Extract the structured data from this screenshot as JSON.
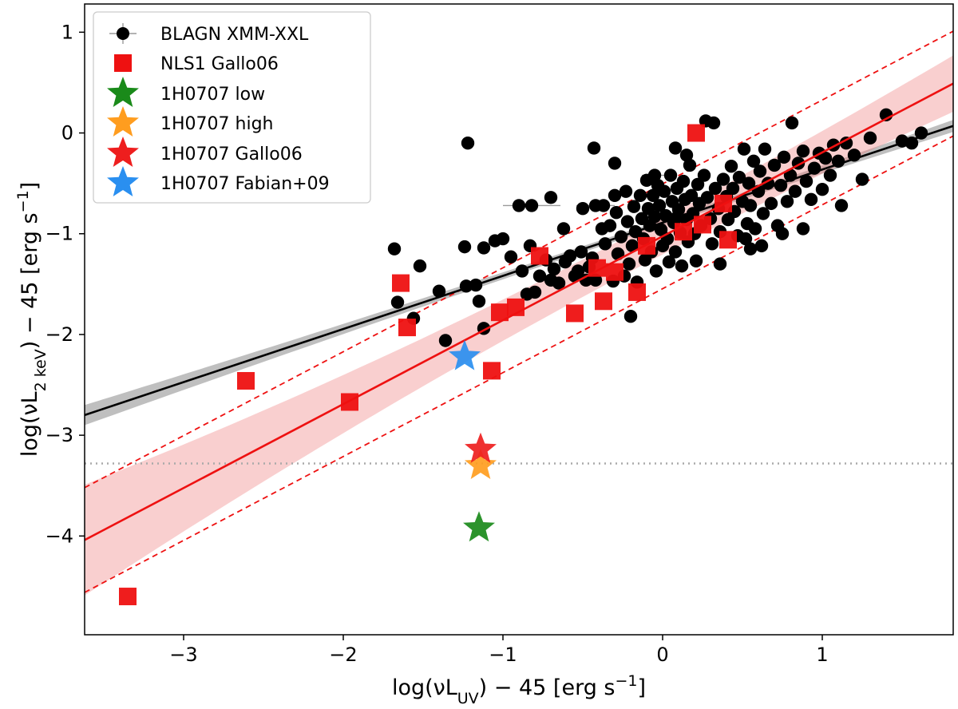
{
  "chart_data": {
    "type": "scatter",
    "xlim": [
      -3.62,
      1.82
    ],
    "ylim": [
      -4.98,
      1.28
    ],
    "x_ticks": [
      -3,
      -2,
      -1,
      0,
      1
    ],
    "y_ticks": [
      -4,
      -3,
      -2,
      -1,
      0,
      1
    ],
    "x_tick_labels": [
      "−3",
      "−2",
      "−1",
      "0",
      "1"
    ],
    "y_tick_labels": [
      "−4",
      "−3",
      "−2",
      "−1",
      "0",
      "1"
    ],
    "xlabel": {
      "prefix": "log(νL",
      "subscript": "UV",
      "suffix": ") − 45 [erg s",
      "superscript": "−1",
      "close": "]"
    },
    "ylabel": {
      "prefix": "log(νL",
      "subscript": "2 keV",
      "suffix": ") − 45 [erg s",
      "superscript": "−1",
      "close": "]"
    },
    "legend_position": "upper-left",
    "legend": [
      {
        "label": "BLAGN XMM-XXL",
        "marker": "circle-errorbar",
        "color": "#000000"
      },
      {
        "label": "NLS1 Gallo06",
        "marker": "square",
        "color": "#ee1111"
      },
      {
        "label": "1H0707 low",
        "marker": "star",
        "color": "#1a8a1a"
      },
      {
        "label": "1H0707 high",
        "marker": "star",
        "color": "#ff9d1f"
      },
      {
        "label": "1H0707 Gallo06",
        "marker": "star",
        "color": "#ee1e1e"
      },
      {
        "label": "1H0707 Fabian+09",
        "marker": "star",
        "color": "#2a8ff0"
      }
    ],
    "reference_line": {
      "name": "flux-limit",
      "y": -3.28,
      "style": "dotted",
      "color": "#aaaaaa"
    },
    "fits": [
      {
        "name": "BLAGN fit",
        "color": "#000000",
        "x": [
          -3.62,
          1.82
        ],
        "y": [
          -2.8,
          0.07
        ],
        "band_halfwidth": [
          0.1,
          0.03,
          0.06
        ]
      },
      {
        "name": "NLS1 fit",
        "color": "#ee1111",
        "x": [
          -3.62,
          1.82
        ],
        "y": [
          -4.04,
          0.49
        ],
        "band_halfwidth": [
          0.55,
          0.18,
          0.28
        ]
      }
    ],
    "nls1_scatter_lines": [
      {
        "name": "NLS1 upper envelope",
        "color": "#ee1111",
        "style": "dashed",
        "x": [
          -3.62,
          1.82
        ],
        "y": [
          -3.52,
          1.01
        ]
      },
      {
        "name": "NLS1 lower envelope",
        "color": "#ee1111",
        "style": "dashed",
        "x": [
          -3.62,
          1.82
        ],
        "y": [
          -4.56,
          -0.03
        ]
      }
    ],
    "stars": [
      {
        "label": "1H0707 low",
        "x": -1.15,
        "y": -3.92,
        "color": "#1a8a1a"
      },
      {
        "label": "1H0707 high",
        "x": -1.14,
        "y": -3.3,
        "color": "#ff9d1f"
      },
      {
        "label": "1H0707 Gallo06",
        "x": -1.14,
        "y": -3.14,
        "color": "#ee1e1e"
      },
      {
        "label": "1H0707 Fabian+09",
        "x": -1.24,
        "y": -2.22,
        "color": "#2a8ff0"
      }
    ],
    "nls1_points": [
      [
        -3.35,
        -4.6
      ],
      [
        -2.61,
        -2.46
      ],
      [
        -1.96,
        -2.67
      ],
      [
        -1.64,
        -1.49
      ],
      [
        -1.6,
        -1.93
      ],
      [
        -1.07,
        -2.36
      ],
      [
        -1.02,
        -1.78
      ],
      [
        -0.92,
        -1.73
      ],
      [
        -0.77,
        -1.22
      ],
      [
        -0.55,
        -1.79
      ],
      [
        -0.41,
        -1.34
      ],
      [
        -0.37,
        -1.67
      ],
      [
        -0.3,
        -1.38
      ],
      [
        -0.16,
        -1.58
      ],
      [
        -0.1,
        -1.12
      ],
      [
        0.13,
        -0.98
      ],
      [
        0.21,
        0.0
      ],
      [
        0.25,
        -0.91
      ],
      [
        0.38,
        -0.7
      ],
      [
        0.41,
        -1.06
      ]
    ],
    "blagn_points": [
      [
        -1.66,
        -1.68
      ],
      [
        -1.56,
        -1.84
      ],
      [
        -1.52,
        -1.32
      ],
      [
        -1.36,
        -2.06
      ],
      [
        -1.4,
        -1.57
      ],
      [
        -1.23,
        -1.52
      ],
      [
        -1.17,
        -1.51
      ],
      [
        -1.12,
        -1.94
      ],
      [
        -1.15,
        -1.67
      ],
      [
        -1.24,
        -1.13
      ],
      [
        -1.12,
        -1.14
      ],
      [
        -1.05,
        -1.07
      ],
      [
        -1.0,
        -1.05
      ],
      [
        -0.9,
        -0.72
      ],
      [
        -0.95,
        -1.23
      ],
      [
        -0.88,
        -1.37
      ],
      [
        -0.85,
        -1.6
      ],
      [
        -0.83,
        -1.12
      ],
      [
        -0.8,
        -1.58
      ],
      [
        -0.77,
        -1.42
      ],
      [
        -0.73,
        -1.26
      ],
      [
        -0.7,
        -0.64
      ],
      [
        -0.7,
        -1.46
      ],
      [
        -0.68,
        -1.35
      ],
      [
        -0.65,
        -1.49
      ],
      [
        -0.61,
        -1.28
      ],
      [
        -0.58,
        -1.22
      ],
      [
        -0.55,
        -1.42
      ],
      [
        -0.53,
        -1.37
      ],
      [
        -0.51,
        -1.18
      ],
      [
        -0.48,
        -1.46
      ],
      [
        -0.46,
        -1.33
      ],
      [
        -0.44,
        -1.24
      ],
      [
        -0.42,
        -1.46
      ],
      [
        -0.43,
        -0.15
      ],
      [
        -0.38,
        -0.95
      ],
      [
        -0.37,
        -0.72
      ],
      [
        -0.36,
        -1.1
      ],
      [
        -0.33,
        -0.92
      ],
      [
        -0.31,
        -1.47
      ],
      [
        -0.3,
        -0.3
      ],
      [
        -0.29,
        -0.79
      ],
      [
        -0.28,
        -1.2
      ],
      [
        -0.26,
        -1.03
      ],
      [
        -0.24,
        -1.42
      ],
      [
        -0.23,
        -0.58
      ],
      [
        -0.22,
        -0.88
      ],
      [
        -0.21,
        -1.3
      ],
      [
        -0.19,
        -1.12
      ],
      [
        -0.18,
        -0.73
      ],
      [
        -0.17,
        -0.98
      ],
      [
        -0.16,
        -1.48
      ],
      [
        -0.14,
        -0.62
      ],
      [
        -0.13,
        -0.85
      ],
      [
        -0.12,
        -1.05
      ],
      [
        -0.11,
        -1.26
      ],
      [
        -0.1,
        -0.47
      ],
      [
        -0.09,
        -0.75
      ],
      [
        -0.08,
        -0.92
      ],
      [
        -0.07,
        -1.18
      ],
      [
        -0.06,
        -0.62
      ],
      [
        -0.05,
        -0.83
      ],
      [
        -0.04,
        -1.37
      ],
      [
        -0.03,
        -0.52
      ],
      [
        -0.02,
        -0.72
      ],
      [
        -0.01,
        -0.96
      ],
      [
        0.0,
        -1.12
      ],
      [
        0.01,
        -0.58
      ],
      [
        0.02,
        -0.82
      ],
      [
        0.03,
        -1.05
      ],
      [
        0.04,
        -1.28
      ],
      [
        0.05,
        -0.42
      ],
      [
        0.06,
        -0.68
      ],
      [
        0.07,
        -0.89
      ],
      [
        0.08,
        -1.18
      ],
      [
        0.09,
        -0.55
      ],
      [
        0.1,
        -0.76
      ],
      [
        0.11,
        -0.99
      ],
      [
        0.12,
        -1.32
      ],
      [
        0.13,
        -0.48
      ],
      [
        0.14,
        -0.66
      ],
      [
        0.15,
        -0.86
      ],
      [
        0.16,
        -1.08
      ],
      [
        0.17,
        -0.32
      ],
      [
        0.18,
        -0.62
      ],
      [
        0.19,
        -0.8
      ],
      [
        0.2,
        -1.0
      ],
      [
        0.21,
        -1.27
      ],
      [
        0.22,
        -0.51
      ],
      [
        0.23,
        -0.7
      ],
      [
        0.24,
        -0.92
      ],
      [
        0.26,
        -0.42
      ],
      [
        0.27,
        0.12
      ],
      [
        0.28,
        -0.64
      ],
      [
        0.3,
        -0.85
      ],
      [
        0.31,
        -1.1
      ],
      [
        0.32,
        0.1
      ],
      [
        0.33,
        -0.55
      ],
      [
        0.35,
        -0.75
      ],
      [
        0.36,
        -0.98
      ],
      [
        0.38,
        -0.46
      ],
      [
        0.4,
        -0.63
      ],
      [
        0.41,
        -0.86
      ],
      [
        0.43,
        -0.33
      ],
      [
        0.44,
        -0.55
      ],
      [
        0.45,
        -0.78
      ],
      [
        0.47,
        -1.02
      ],
      [
        0.48,
        -0.44
      ],
      [
        0.5,
        -0.68
      ],
      [
        0.51,
        -0.16
      ],
      [
        0.53,
        -0.9
      ],
      [
        0.54,
        -0.5
      ],
      [
        0.55,
        -0.72
      ],
      [
        0.57,
        -0.28
      ],
      [
        0.58,
        -0.95
      ],
      [
        0.6,
        -0.58
      ],
      [
        0.61,
        -0.38
      ],
      [
        0.63,
        -0.8
      ],
      [
        0.64,
        -0.16
      ],
      [
        0.66,
        -0.5
      ],
      [
        0.68,
        -0.7
      ],
      [
        0.7,
        -0.32
      ],
      [
        0.72,
        -0.92
      ],
      [
        0.74,
        -0.52
      ],
      [
        0.76,
        -0.24
      ],
      [
        0.78,
        -0.68
      ],
      [
        0.8,
        -0.42
      ],
      [
        0.83,
        -0.58
      ],
      [
        0.85,
        -0.3
      ],
      [
        0.88,
        -0.18
      ],
      [
        0.9,
        -0.48
      ],
      [
        0.93,
        -0.66
      ],
      [
        0.95,
        -0.35
      ],
      [
        0.98,
        -0.2
      ],
      [
        1.0,
        -0.56
      ],
      [
        1.02,
        -0.25
      ],
      [
        1.05,
        -0.42
      ],
      [
        1.07,
        -0.12
      ],
      [
        1.1,
        -0.28
      ],
      [
        1.12,
        -0.72
      ],
      [
        1.15,
        -0.1
      ],
      [
        1.2,
        -0.22
      ],
      [
        1.25,
        -0.46
      ],
      [
        1.3,
        -0.05
      ],
      [
        1.4,
        0.18
      ],
      [
        1.5,
        -0.08
      ],
      [
        1.56,
        -0.1
      ],
      [
        1.62,
        0.0
      ],
      [
        0.81,
        0.1
      ],
      [
        0.88,
        -0.95
      ],
      [
        0.52,
        -1.05
      ],
      [
        0.36,
        -1.3
      ],
      [
        0.62,
        -1.12
      ],
      [
        0.75,
        -1.0
      ],
      [
        -0.5,
        -0.75
      ],
      [
        -0.62,
        -0.95
      ],
      [
        -0.3,
        -0.62
      ],
      [
        0.15,
        -0.22
      ],
      [
        0.08,
        -0.15
      ]
    ],
    "errorbar_points": [
      [
        -1.68,
        -1.15,
        0.0
      ],
      [
        -0.2,
        -1.82,
        0.0
      ],
      [
        -1.22,
        -0.1,
        0.0
      ],
      [
        -0.82,
        -0.72,
        0.18
      ],
      [
        -0.42,
        -0.72,
        0.12
      ],
      [
        0.08,
        -0.85,
        0.1
      ],
      [
        -0.05,
        -0.42,
        0.08
      ],
      [
        0.55,
        -1.15,
        0.0
      ]
    ]
  }
}
